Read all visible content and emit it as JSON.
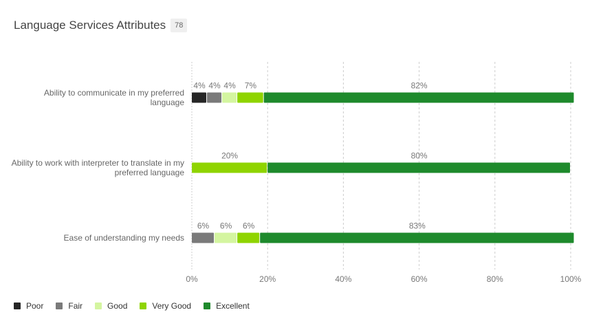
{
  "header": {
    "title": "Language Services Attributes",
    "response_count": "78"
  },
  "colors": {
    "Poor": "#262626",
    "Fair": "#7a7a7a",
    "Good": "#d4f5a0",
    "Very Good": "#8fd400",
    "Excellent": "#1e8a2c"
  },
  "chart_data": {
    "type": "bar",
    "orientation": "horizontal",
    "stacked": true,
    "categories": [
      "Ability to communicate in my preferred language",
      "Ability to work with interpreter to translate in my preferred language",
      "Ease of understanding my needs"
    ],
    "category_lines": [
      [
        "Ability to communicate in my preferred",
        "language"
      ],
      [
        "Ability to work with interpreter to translate in my",
        "preferred language"
      ],
      [
        "Ease of understanding my needs"
      ]
    ],
    "series": [
      {
        "name": "Poor",
        "values": [
          4,
          0,
          0
        ]
      },
      {
        "name": "Fair",
        "values": [
          4,
          0,
          6
        ]
      },
      {
        "name": "Good",
        "values": [
          4,
          0,
          6
        ]
      },
      {
        "name": "Very Good",
        "values": [
          7,
          20,
          6
        ]
      },
      {
        "name": "Excellent",
        "values": [
          82,
          80,
          83
        ]
      }
    ],
    "data_labels": [
      [
        "4%",
        "4%",
        "4%",
        "7%",
        "82%"
      ],
      [
        "",
        "",
        "",
        "20%",
        "80%"
      ],
      [
        "",
        "6%",
        "6%",
        "6%",
        "83%"
      ]
    ],
    "xlim": [
      0,
      100
    ],
    "x_ticks": [
      "0%",
      "20%",
      "40%",
      "60%",
      "80%",
      "100%"
    ],
    "grid": "vertical dashed",
    "legend_position": "bottom-left"
  }
}
